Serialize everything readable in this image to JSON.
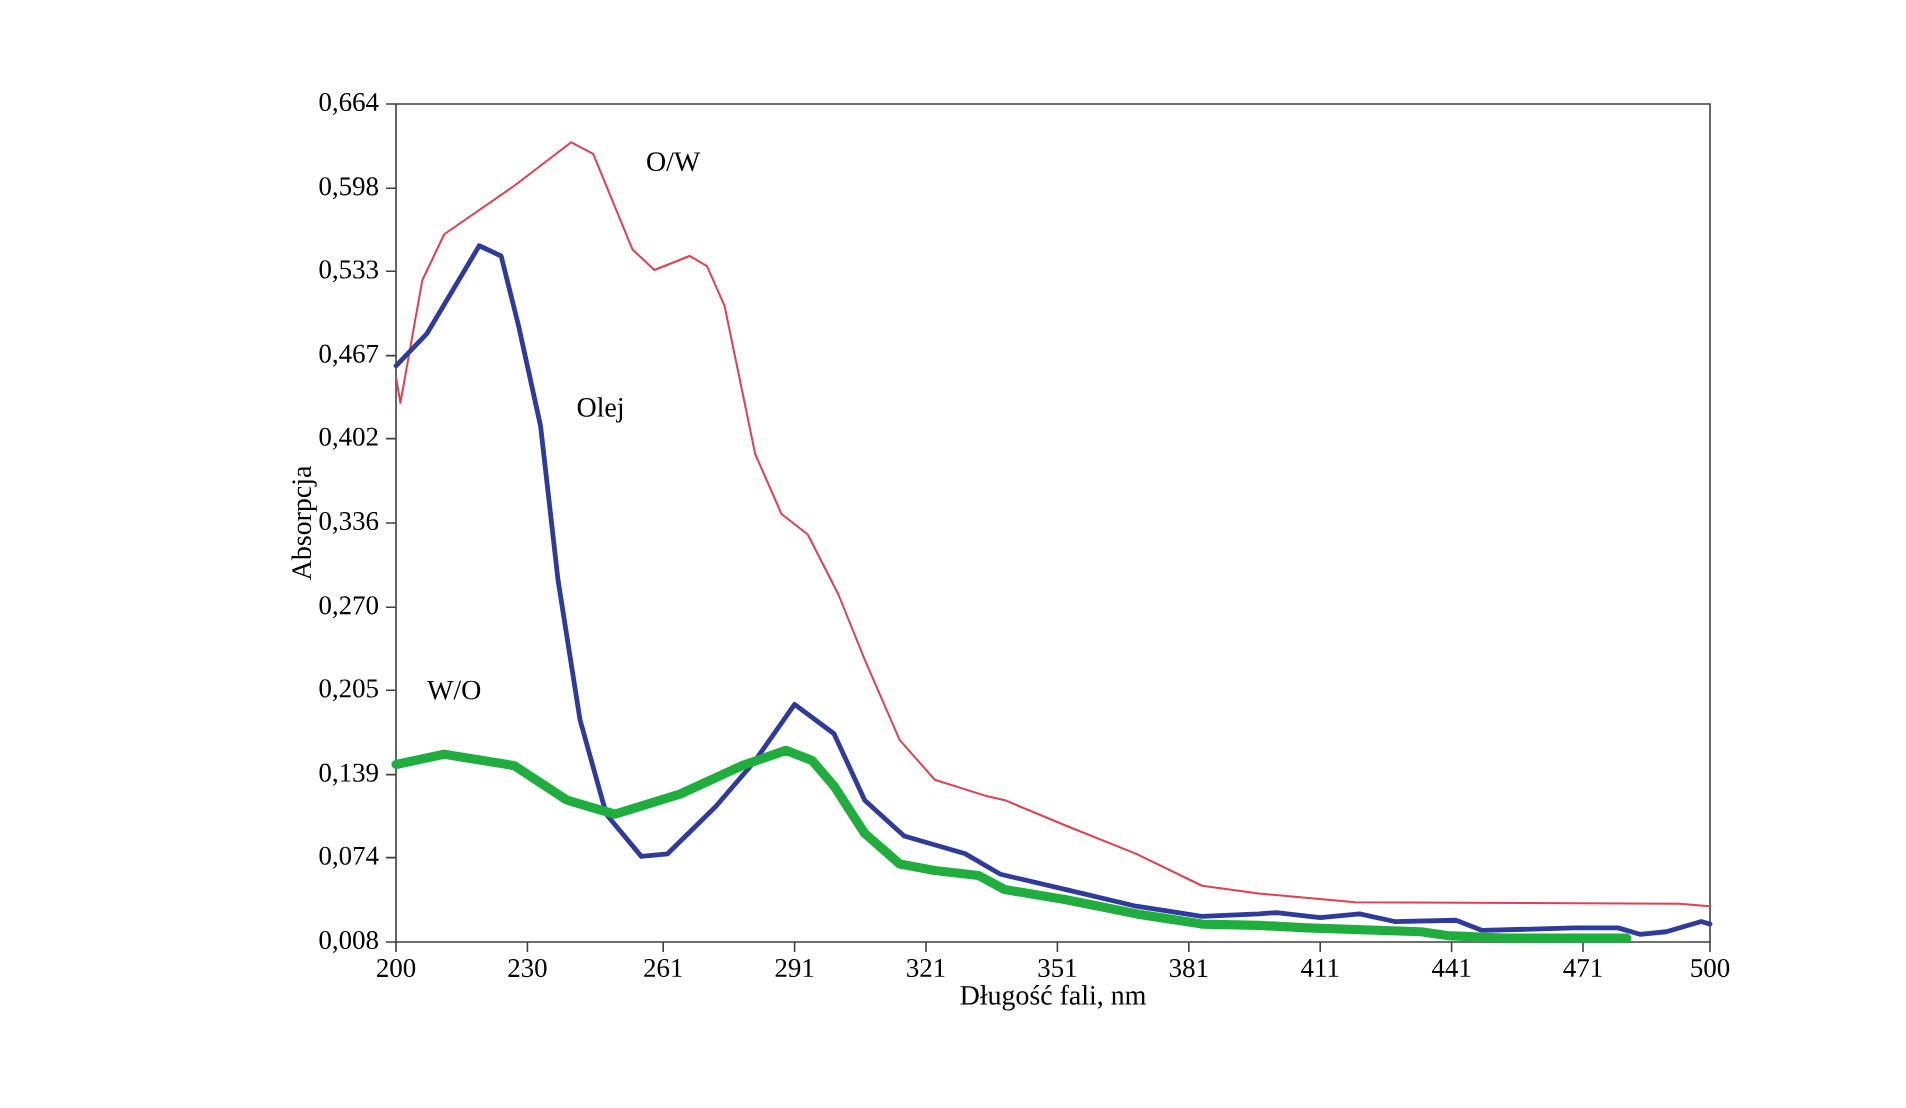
{
  "chart_data": {
    "type": "line",
    "xlabel": "Długość fali, nm",
    "ylabel": "Absorpcja",
    "xlim": [
      200,
      500
    ],
    "ylim": [
      0.008,
      0.664
    ],
    "xticks": [
      200,
      230,
      261,
      291,
      321,
      351,
      381,
      411,
      441,
      471,
      500
    ],
    "yticks": [
      {
        "value": 0.008,
        "label": "0,008"
      },
      {
        "value": 0.074,
        "label": "0,074"
      },
      {
        "value": 0.139,
        "label": "0,139"
      },
      {
        "value": 0.205,
        "label": "0,205"
      },
      {
        "value": 0.27,
        "label": "0,270"
      },
      {
        "value": 0.336,
        "label": "0,336"
      },
      {
        "value": 0.402,
        "label": "0,402"
      },
      {
        "value": 0.467,
        "label": "0,467"
      },
      {
        "value": 0.533,
        "label": "0,533"
      },
      {
        "value": 0.598,
        "label": "0,598"
      },
      {
        "value": 0.664,
        "label": "0,664"
      }
    ],
    "grid": false,
    "marker": "none",
    "series": [
      {
        "name": "O/W",
        "color": "#e0404f",
        "x": [
          200,
          201,
          206,
          211,
          227,
          240,
          245,
          254,
          259,
          267,
          271,
          275,
          282,
          288,
          294,
          301,
          307,
          315,
          323,
          335,
          339,
          353,
          369,
          384,
          397,
          419,
          493,
          500
        ],
        "values": [
          0.45,
          0.43,
          0.526,
          0.562,
          0.6,
          0.634,
          0.625,
          0.55,
          0.534,
          0.545,
          0.537,
          0.506,
          0.39,
          0.343,
          0.327,
          0.28,
          0.229,
          0.166,
          0.135,
          0.122,
          0.119,
          0.099,
          0.077,
          0.052,
          0.046,
          0.039,
          0.038,
          0.036
        ]
      },
      {
        "name": "Olej",
        "color": "#2e3b9c",
        "x": [
          200,
          207,
          219,
          224,
          228,
          233,
          237,
          242,
          248,
          256,
          262,
          273,
          282,
          291,
          300,
          307,
          316,
          330,
          338,
          353,
          369,
          384,
          397,
          401,
          411,
          420,
          428,
          442,
          448,
          469,
          479,
          484,
          490,
          498,
          500
        ],
        "values": [
          0.459,
          0.484,
          0.553,
          0.545,
          0.49,
          0.412,
          0.291,
          0.182,
          0.108,
          0.075,
          0.077,
          0.114,
          0.15,
          0.194,
          0.171,
          0.119,
          0.091,
          0.077,
          0.061,
          0.049,
          0.036,
          0.028,
          0.03,
          0.031,
          0.027,
          0.03,
          0.024,
          0.025,
          0.017,
          0.019,
          0.019,
          0.014,
          0.016,
          0.024,
          0.022
        ]
      },
      {
        "name": "W/O",
        "color": "#1fae3e",
        "x": [
          200,
          211,
          227,
          239,
          250,
          265,
          279,
          289,
          295,
          300,
          307,
          315,
          323,
          333,
          339,
          353,
          369,
          384,
          397,
          408,
          434,
          440,
          453,
          481
        ],
        "values": [
          0.147,
          0.155,
          0.146,
          0.119,
          0.108,
          0.124,
          0.146,
          0.158,
          0.15,
          0.13,
          0.093,
          0.069,
          0.064,
          0.06,
          0.049,
          0.041,
          0.03,
          0.022,
          0.021,
          0.019,
          0.016,
          0.013,
          0.011,
          0.011
        ]
      }
    ]
  }
}
